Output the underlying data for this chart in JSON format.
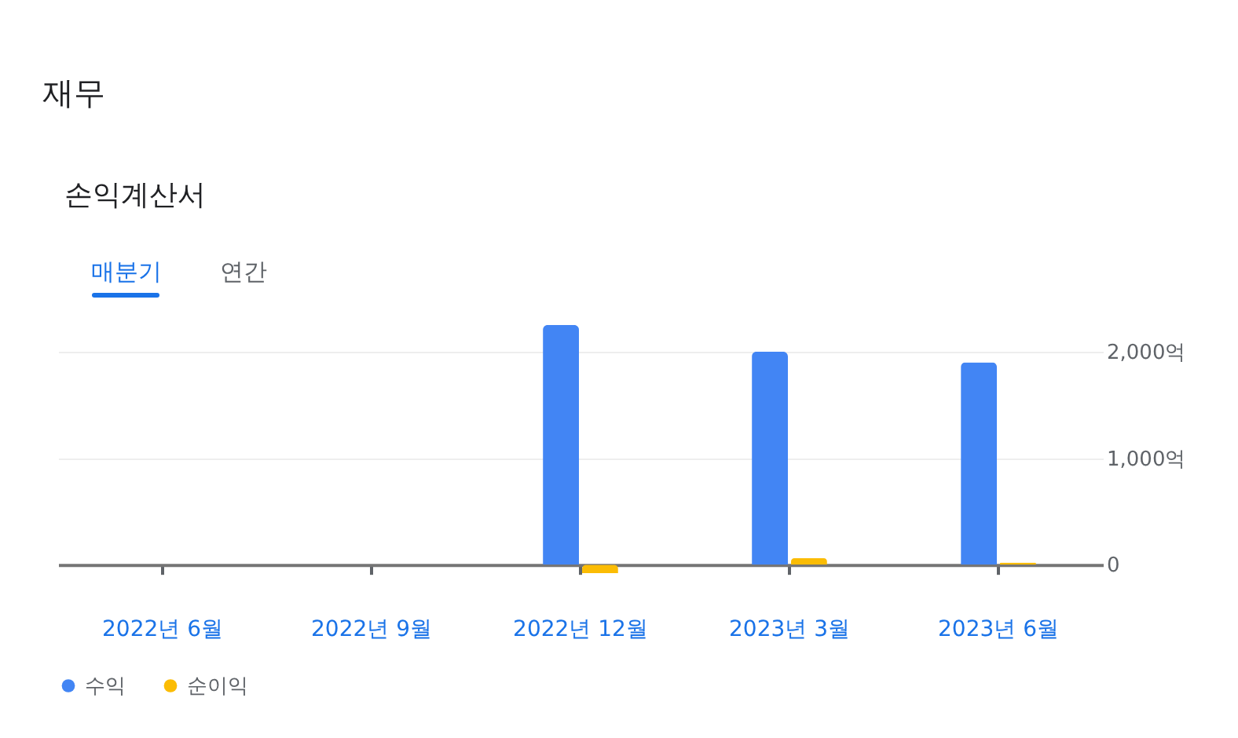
{
  "chart_data": {
    "type": "bar",
    "title": "재무",
    "subtitle": "손익계산서",
    "annotations": [
      "매분기",
      "연간"
    ],
    "categories": [
      "2022년 6월",
      "2022년 9월",
      "2022년 12월",
      "2023년 3월",
      "2023년 6월"
    ],
    "series": [
      {
        "name": "수익",
        "color": "#4285f4",
        "values": [
          null,
          null,
          2250,
          2000,
          1900
        ]
      },
      {
        "name": "순이익",
        "color": "#fbbc04",
        "values": [
          null,
          null,
          -80,
          60,
          20
        ]
      }
    ],
    "ylim": [
      -80,
      2250
    ],
    "yticks": [
      0,
      {
        "value": 1000,
        "label": "1,000억"
      },
      {
        "value": 2000,
        "label": "2,000억"
      }
    ],
    "grid": "y",
    "legend": "bottom left"
  }
}
